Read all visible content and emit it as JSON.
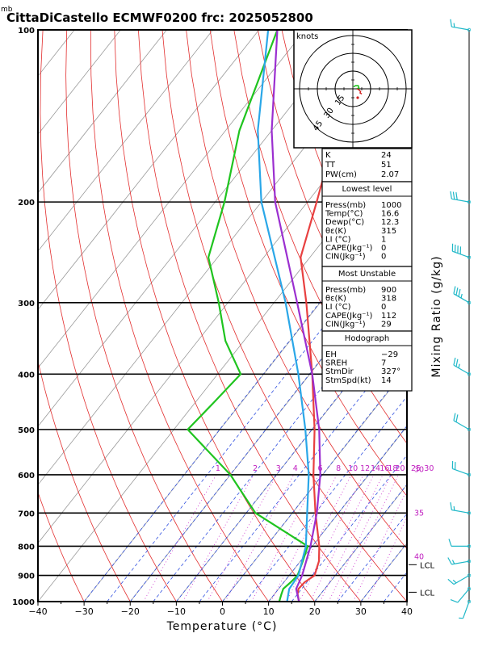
{
  "header": {
    "title": "CittaDiCastello ECMWF0200  frc: 2025052800",
    "p_unit": "mb"
  },
  "axes": {
    "xlabel": "Temperature (°C)",
    "right_label": "Mixing Ratio (g/kg)",
    "x_ticks": [
      -40,
      -30,
      -20,
      -10,
      0,
      10,
      20,
      30,
      40
    ],
    "p_ticks": [
      100,
      200,
      300,
      400,
      500,
      600,
      700,
      800,
      900,
      1000
    ]
  },
  "mixing_ratio_labels": [
    "1",
    "2",
    "3",
    "4",
    "6",
    "8",
    "10",
    "12",
    "14",
    "16",
    "18",
    "20",
    "25",
    "30"
  ],
  "theta_e_labels": [
    {
      "text": "30",
      "p": 588
    },
    {
      "text": "35",
      "p": 700
    },
    {
      "text": "40",
      "p": 835
    }
  ],
  "lcl": [
    {
      "label": "LCL",
      "p": 862
    },
    {
      "label": "LCL",
      "p": 963
    }
  ],
  "hodograph": {
    "unit_label": "knots",
    "rings": [
      "15",
      "30",
      "45"
    ]
  },
  "indices": {
    "k": {
      "label": "K",
      "value": "24"
    },
    "tt": {
      "label": "TT",
      "value": "51"
    },
    "pw": {
      "label": "PW(cm)",
      "value": "2.07"
    }
  },
  "lowest_level": {
    "title": "Lowest level",
    "rows": [
      {
        "label": "Press(mb)",
        "value": "1000"
      },
      {
        "label": "Temp(°C)",
        "value": "16.6"
      },
      {
        "label": "Dewp(°C)",
        "value": "12.3"
      },
      {
        "label": "θε(K)",
        "value": "315"
      },
      {
        "label": "LI (°C)",
        "value": "1"
      },
      {
        "label": "CAPE(Jkg⁻¹)",
        "value": "0"
      },
      {
        "label": "CIN(Jkg⁻¹)",
        "value": "0"
      }
    ]
  },
  "most_unstable": {
    "title": "Most Unstable",
    "rows": [
      {
        "label": "Press(mb)",
        "value": "900"
      },
      {
        "label": "θε(K)",
        "value": "318"
      },
      {
        "label": "LI (°C)",
        "value": "0"
      },
      {
        "label": "CAPE(Jkg⁻¹)",
        "value": "112"
      },
      {
        "label": "CIN(Jkg⁻¹)",
        "value": "29"
      }
    ]
  },
  "hodograph_params": {
    "title": "Hodograph",
    "rows": [
      {
        "label": "EH",
        "value": "−29"
      },
      {
        "label": "SREH",
        "value": "7"
      },
      {
        "label": "StmDir",
        "value": "327°"
      },
      {
        "label": "StmSpd(kt)",
        "value": "14"
      }
    ]
  },
  "colors": {
    "temperature": "#e84040",
    "dewpoint": "#1fc41f",
    "parcel": "#9b2fd0",
    "wetbulb": "#2aa7e8",
    "dry_adiabat": "#e22d2d",
    "moist_adiabat": "#3050e0",
    "mixing_ratio": "#d040d0",
    "isotherm": "#9a9a9a",
    "wind_barb": "#1fb8c8"
  },
  "chart_data": {
    "type": "line",
    "title": "CittaDiCastello ECMWF0200  frc: 2025052800",
    "xlabel": "Temperature (°C)",
    "ylabel": "mb",
    "xlim": [
      -40,
      40
    ],
    "ylim": [
      1000,
      100
    ],
    "y_scale": "log",
    "series": [
      {
        "key": "temperature",
        "points": [
          [
            1000,
            16.6
          ],
          [
            970,
            15.0
          ],
          [
            950,
            14.3
          ],
          [
            925,
            14.5
          ],
          [
            900,
            15.5
          ],
          [
            850,
            14.0
          ],
          [
            800,
            11.5
          ],
          [
            700,
            5.0
          ],
          [
            600,
            -2.0
          ],
          [
            500,
            -9.5
          ],
          [
            400,
            -19.5
          ],
          [
            300,
            -33.0
          ],
          [
            250,
            -42.0
          ],
          [
            200,
            -48.0
          ],
          [
            150,
            -56.0
          ],
          [
            100,
            -64.0
          ]
        ]
      },
      {
        "key": "dewpoint",
        "points": [
          [
            1000,
            12.3
          ],
          [
            970,
            11.5
          ],
          [
            950,
            11.0
          ],
          [
            925,
            11.5
          ],
          [
            900,
            11.8
          ],
          [
            850,
            10.5
          ],
          [
            800,
            9.0
          ],
          [
            700,
            -8.0
          ],
          [
            600,
            -20.0
          ],
          [
            500,
            -37.0
          ],
          [
            450,
            -36.0
          ],
          [
            400,
            -35.0
          ],
          [
            350,
            -44.0
          ],
          [
            300,
            -52.0
          ],
          [
            250,
            -62.0
          ],
          [
            200,
            -68.0
          ],
          [
            150,
            -77.0
          ],
          [
            100,
            -86.0
          ]
        ]
      },
      {
        "key": "parcel",
        "points": [
          [
            1000,
            16.6
          ],
          [
            950,
            13.8
          ],
          [
            900,
            12.8
          ],
          [
            800,
            9.6
          ],
          [
            700,
            5.3
          ],
          [
            600,
            -0.5
          ],
          [
            500,
            -8.5
          ],
          [
            400,
            -19.5
          ],
          [
            300,
            -35.0
          ],
          [
            200,
            -57.0
          ],
          [
            150,
            -70.0
          ],
          [
            100,
            -86.0
          ]
        ]
      },
      {
        "key": "wetbulb",
        "points": [
          [
            1000,
            14.0
          ],
          [
            950,
            12.3
          ],
          [
            900,
            12.0
          ],
          [
            800,
            8.6
          ],
          [
            700,
            3.2
          ],
          [
            600,
            -3.0
          ],
          [
            500,
            -11.5
          ],
          [
            400,
            -22.5
          ],
          [
            300,
            -37.5
          ],
          [
            200,
            -60.0
          ],
          [
            150,
            -73.0
          ],
          [
            100,
            -88.0
          ]
        ]
      }
    ],
    "winds": [
      {
        "p": 1000,
        "dir": 200,
        "spd": 5
      },
      {
        "p": 950,
        "dir": 220,
        "spd": 10
      },
      {
        "p": 900,
        "dir": 240,
        "spd": 15
      },
      {
        "p": 850,
        "dir": 260,
        "spd": 15
      },
      {
        "p": 800,
        "dir": 270,
        "spd": 10
      },
      {
        "p": 700,
        "dir": 280,
        "spd": 15
      },
      {
        "p": 600,
        "dir": 290,
        "spd": 20
      },
      {
        "p": 500,
        "dir": 300,
        "spd": 20
      },
      {
        "p": 400,
        "dir": 300,
        "spd": 25
      },
      {
        "p": 300,
        "dir": 300,
        "spd": 35
      },
      {
        "p": 250,
        "dir": 290,
        "spd": 40
      },
      {
        "p": 200,
        "dir": 280,
        "spd": 30
      },
      {
        "p": 100,
        "dir": 280,
        "spd": 15
      }
    ]
  }
}
